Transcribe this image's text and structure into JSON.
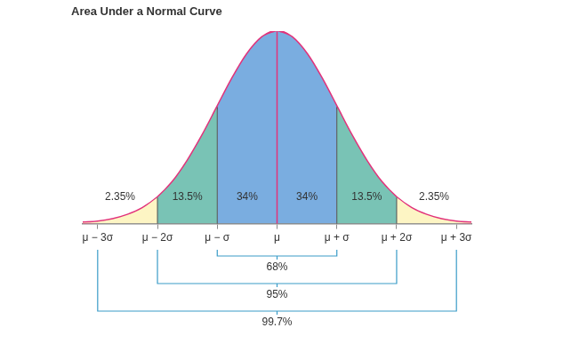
{
  "chart_data": {
    "type": "line",
    "title": "Area Under a Normal Curve",
    "x": [
      -3.25,
      -3,
      -2.75,
      -2.5,
      -2.25,
      -2,
      -1.75,
      -1.5,
      -1.25,
      -1,
      -0.75,
      -0.5,
      -0.25,
      0,
      0.25,
      0.5,
      0.75,
      1,
      1.25,
      1.5,
      1.75,
      2,
      2.25,
      2.5,
      2.75,
      3,
      3.25
    ],
    "values": [
      0.002,
      0.004,
      0.009,
      0.018,
      0.032,
      0.054,
      0.086,
      0.13,
      0.183,
      0.242,
      0.301,
      0.352,
      0.387,
      0.4,
      0.387,
      0.352,
      0.301,
      0.242,
      0.183,
      0.13,
      0.086,
      0.054,
      0.032,
      0.018,
      0.009,
      0.004,
      0.002
    ],
    "color": "#e2337b",
    "xlim": [
      -3.25,
      3.25
    ],
    "ylim": [
      0,
      0.4
    ],
    "xticks": [
      {
        "value": -3,
        "label": "μ − 3σ"
      },
      {
        "value": -2,
        "label": "μ − 2σ"
      },
      {
        "value": -1,
        "label": "μ − σ"
      },
      {
        "value": 0,
        "label": "μ"
      },
      {
        "value": 1,
        "label": "μ + σ"
      },
      {
        "value": 2,
        "label": "μ + 2σ"
      },
      {
        "value": 3,
        "label": "μ + 3σ"
      }
    ],
    "tick_labels": "x",
    "grid": false,
    "regions": [
      {
        "from": -3.25,
        "to": -2,
        "value": 2.35,
        "label": "2.35%",
        "color": "#fdf5c4"
      },
      {
        "from": -2,
        "to": -1,
        "value": 13.5,
        "label": "13.5%",
        "color": "#79c3b5"
      },
      {
        "from": -1,
        "to": 0,
        "value": 34,
        "label": "34%",
        "color": "#7aade0"
      },
      {
        "from": 0,
        "to": 1,
        "value": 34,
        "label": "34%",
        "color": "#7aade0"
      },
      {
        "from": 1,
        "to": 2,
        "value": 13.5,
        "label": "13.5%",
        "color": "#79c3b5"
      },
      {
        "from": 2,
        "to": 3.25,
        "value": 2.35,
        "label": "2.35%",
        "color": "#fdf5c4"
      }
    ],
    "brackets": [
      {
        "from": -1,
        "to": 1,
        "value": 68,
        "label": "68%"
      },
      {
        "from": -2,
        "to": 2,
        "value": 95,
        "label": "95%"
      },
      {
        "from": -3,
        "to": 3,
        "value": 99.7,
        "label": "99.7%"
      }
    ]
  }
}
